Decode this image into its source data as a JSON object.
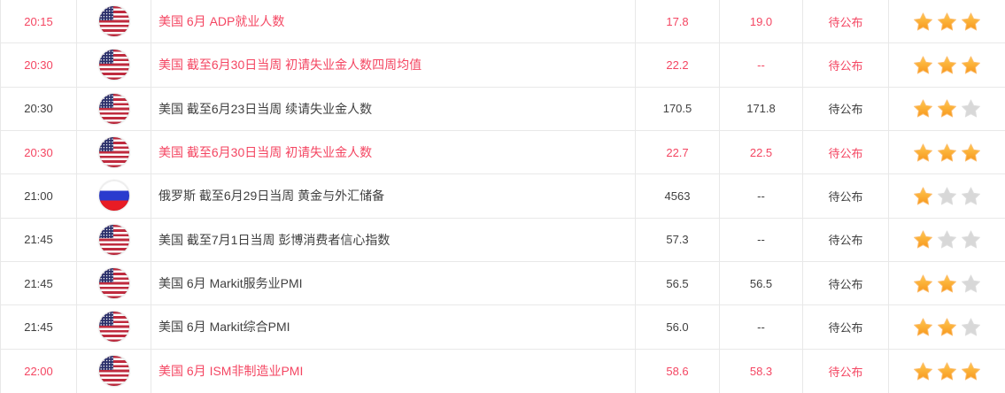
{
  "table": {
    "rows": [
      {
        "time": "20:15",
        "flag": "us",
        "country": "美国",
        "event": "美国 6月 ADP就业人数",
        "previous": "17.8",
        "forecast": "19.0",
        "status": "待公布",
        "importance": 3,
        "highlight": true
      },
      {
        "time": "20:30",
        "flag": "us",
        "country": "美国",
        "event": "美国 截至6月30日当周 初请失业金人数四周均值",
        "previous": "22.2",
        "forecast": "--",
        "status": "待公布",
        "importance": 3,
        "highlight": true
      },
      {
        "time": "20:30",
        "flag": "us",
        "country": "美国",
        "event": "美国 截至6月23日当周 续请失业金人数",
        "previous": "170.5",
        "forecast": "171.8",
        "status": "待公布",
        "importance": 2,
        "highlight": false
      },
      {
        "time": "20:30",
        "flag": "us",
        "country": "美国",
        "event": "美国 截至6月30日当周 初请失业金人数",
        "previous": "22.7",
        "forecast": "22.5",
        "status": "待公布",
        "importance": 3,
        "highlight": true
      },
      {
        "time": "21:00",
        "flag": "ru",
        "country": "俄罗斯",
        "event": "俄罗斯 截至6月29日当周 黄金与外汇储备",
        "previous": "4563",
        "forecast": "--",
        "status": "待公布",
        "importance": 1,
        "highlight": false
      },
      {
        "time": "21:45",
        "flag": "us",
        "country": "美国",
        "event": "美国 截至7月1日当周 彭博消费者信心指数",
        "previous": "57.3",
        "forecast": "--",
        "status": "待公布",
        "importance": 1,
        "highlight": false
      },
      {
        "time": "21:45",
        "flag": "us",
        "country": "美国",
        "event": "美国 6月 Markit服务业PMI",
        "previous": "56.5",
        "forecast": "56.5",
        "status": "待公布",
        "importance": 2,
        "highlight": false
      },
      {
        "time": "21:45",
        "flag": "us",
        "country": "美国",
        "event": "美国 6月 Markit综合PMI",
        "previous": "56.0",
        "forecast": "--",
        "status": "待公布",
        "importance": 2,
        "highlight": false
      },
      {
        "time": "22:00",
        "flag": "us",
        "country": "美国",
        "event": "美国 6月 ISM非制造业PMI",
        "previous": "58.6",
        "forecast": "58.3",
        "status": "待公布",
        "importance": 3,
        "highlight": true
      }
    ],
    "max_importance": 3
  },
  "icons": {
    "us_flag": "us-flag-icon",
    "russia_flag": "russia-flag-icon",
    "star_filled": "star-filled-icon",
    "star_empty": "star-empty-icon"
  },
  "colors": {
    "highlight_text": "#f44662",
    "normal_text": "#404040",
    "star_filled_top": "#ffc850",
    "star_filled_bottom": "#f7971d",
    "star_empty": "#d8d8d8",
    "border": "#e8e8e8"
  }
}
